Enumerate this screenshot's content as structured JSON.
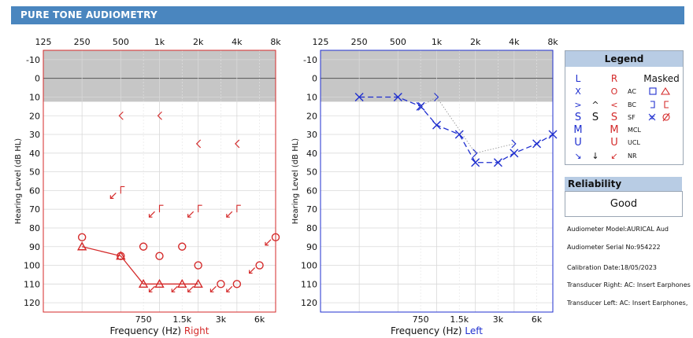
{
  "header": {
    "title": "PURE TONE AUDIOMETRY"
  },
  "colors": {
    "right": "#d42a2a",
    "left": "#1f2fcf",
    "header_bg": "#4a86bf",
    "legend_header": "#b8cce4",
    "shade": "#c6c6c6"
  },
  "chart_data": [
    {
      "type": "scatter",
      "ear": "Right",
      "xlabel_prefix": "Frequency (Hz)",
      "xlabel_ear": "Right",
      "ylabel": "Hearing Level (dB HL)",
      "ylim": [
        -15,
        125
      ],
      "y_ticks": [
        -10,
        0,
        10,
        20,
        30,
        40,
        50,
        60,
        70,
        80,
        90,
        100,
        110,
        120
      ],
      "top_ticks": [
        "125",
        "250",
        "500",
        "1k",
        "2k",
        "4k",
        "8k"
      ],
      "bottom_ticks": [
        "750",
        "1.5k",
        "3k",
        "6k"
      ],
      "series": [
        {
          "name": "AC",
          "symbol": "circle",
          "connected": false,
          "x": [
            250,
            500,
            750,
            1000,
            1500,
            2000,
            3000,
            4000,
            6000,
            8000
          ],
          "y": [
            85,
            95,
            90,
            95,
            90,
            100,
            110,
            110,
            100,
            85
          ],
          "no_response": [
            false,
            false,
            false,
            false,
            false,
            false,
            true,
            true,
            true,
            true
          ]
        },
        {
          "name": "AC Masked",
          "symbol": "triangle",
          "connected": true,
          "x": [
            250,
            500,
            750,
            1000,
            1500,
            2000
          ],
          "y": [
            90,
            95,
            110,
            110,
            110,
            110
          ],
          "no_response": [
            false,
            false,
            false,
            true,
            true,
            true
          ]
        },
        {
          "name": "BC",
          "symbol": "bracket-left-open",
          "connected": false,
          "x": [
            500,
            1000,
            2000,
            4000
          ],
          "y": [
            20,
            20,
            35,
            35
          ]
        },
        {
          "name": "BC Masked",
          "symbol": "bracket-masked",
          "connected": false,
          "x": [
            500,
            1000,
            2000,
            4000
          ],
          "y": [
            60,
            70,
            70,
            70
          ],
          "no_response": [
            true,
            true,
            true,
            true
          ]
        }
      ]
    },
    {
      "type": "scatter",
      "ear": "Left",
      "xlabel_prefix": "Frequency (Hz)",
      "xlabel_ear": "Left",
      "ylabel": "Hearing Level (dB HL)",
      "ylim": [
        -15,
        125
      ],
      "y_ticks": [
        -10,
        0,
        10,
        20,
        30,
        40,
        50,
        60,
        70,
        80,
        90,
        100,
        110,
        120
      ],
      "top_ticks": [
        "125",
        "250",
        "500",
        "1k",
        "2k",
        "4k",
        "8k"
      ],
      "bottom_ticks": [
        "750",
        "1.5k",
        "3k",
        "6k"
      ],
      "series": [
        {
          "name": "AC",
          "symbol": "cross",
          "connected": true,
          "x": [
            250,
            500,
            750,
            1000,
            1500,
            2000,
            3000,
            4000,
            6000,
            8000
          ],
          "y": [
            10,
            10,
            15,
            25,
            30,
            45,
            45,
            40,
            35,
            30
          ]
        },
        {
          "name": "BC",
          "symbol": "bracket-right-open",
          "connected": true,
          "x": [
            750,
            1000,
            2000,
            4000
          ],
          "y": [
            15,
            10,
            40,
            35
          ]
        }
      ]
    }
  ],
  "legend": {
    "title": "Legend",
    "col_left": "L",
    "col_right": "R",
    "col_masked": "Masked",
    "rows": [
      {
        "label": "AC",
        "left": "X",
        "right": "O"
      },
      {
        "label": "BC",
        "left": ">",
        "mid": "^",
        "right": "<"
      },
      {
        "label": "SF",
        "left": "S",
        "mid": "S",
        "right": "S"
      },
      {
        "label": "MCL",
        "left": "M",
        "right": "M"
      },
      {
        "label": "UCL",
        "left": "U",
        "right": "U"
      },
      {
        "label": "NR",
        "left": "↘",
        "mid": "↓",
        "right": "↙"
      }
    ]
  },
  "reliability": {
    "title": "Reliability",
    "value": "Good"
  },
  "device": {
    "model": "Audiometer Model:AURICAL Aud",
    "serial": "Audiometer Serial No:954222",
    "calibration": "Calibration Date:18/05/2023",
    "transducer_right": "Transducer Right: AC: Insert Earphones",
    "transducer_left": "Transducer Left: AC: Insert Earphones,"
  }
}
